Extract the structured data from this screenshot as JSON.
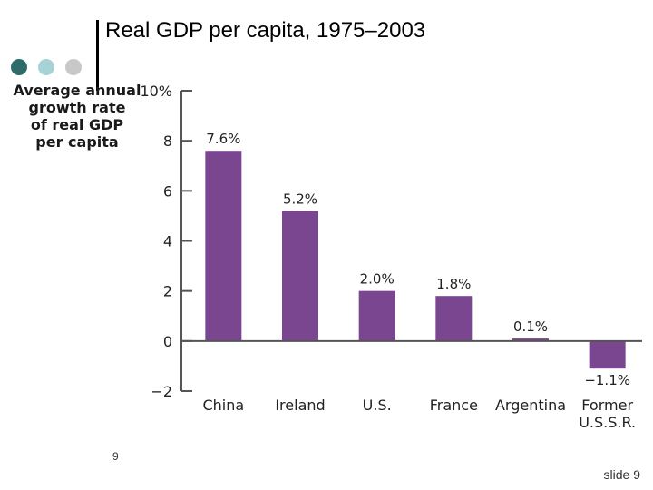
{
  "slide": {
    "title": "Real GDP per capita, 1975–2003",
    "left_number": "9",
    "footer": "slide 9"
  },
  "colors": {
    "bar": "#7b4690",
    "axis": "#555555",
    "dot1": "#2e6b6b",
    "dot2": "#a8d3d6",
    "dot3": "#c8c8c8"
  },
  "chart_data": {
    "type": "bar",
    "title": "",
    "ylabel_lines": [
      "Average annual",
      "growth rate",
      "of real GDP",
      "per capita"
    ],
    "xlabel": "",
    "categories": [
      [
        "China"
      ],
      [
        "Ireland"
      ],
      [
        "U.S."
      ],
      [
        "France"
      ],
      [
        "Argentina"
      ],
      [
        "Former",
        "U.S.S.R."
      ]
    ],
    "values": [
      7.6,
      5.2,
      2.0,
      1.8,
      0.1,
      -1.1
    ],
    "data_labels": [
      "7.6%",
      "5.2%",
      "2.0%",
      "1.8%",
      "0.1%",
      "−1.1%"
    ],
    "ylim": [
      -2,
      10
    ],
    "yticks": [
      -2,
      0,
      2,
      4,
      6,
      8,
      10
    ],
    "ytick_labels": [
      "−2",
      "0",
      "2",
      "4",
      "6",
      "8",
      "10%"
    ],
    "grid": false,
    "legend": "none"
  }
}
